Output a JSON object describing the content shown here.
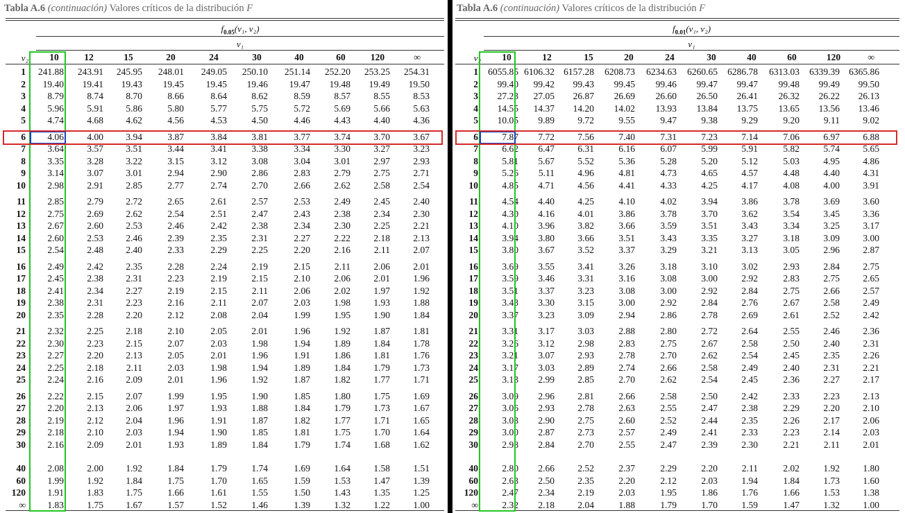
{
  "caption": {
    "table_number": "Tabla A.6",
    "continuation": "(continuación)",
    "title": "Valores críticos de la distribución",
    "letter": "F"
  },
  "row_axis_label": "v₂",
  "column_axis_label": "v₁",
  "columns": [
    "10",
    "12",
    "15",
    "20",
    "24",
    "30",
    "40",
    "60",
    "120",
    "∞"
  ],
  "rows": [
    "1",
    "2",
    "3",
    "4",
    "5",
    "6",
    "7",
    "8",
    "9",
    "10",
    "11",
    "12",
    "13",
    "14",
    "15",
    "16",
    "17",
    "18",
    "19",
    "20",
    "21",
    "22",
    "23",
    "24",
    "25",
    "26",
    "27",
    "28",
    "29",
    "30",
    "40",
    "60",
    "120",
    "∞"
  ],
  "tables": [
    {
      "header_f": "f",
      "header_sub": "0.05",
      "header_args": "(v₁, v₂)",
      "values": [
        [
          "241.88",
          "243.91",
          "245.95",
          "248.01",
          "249.05",
          "250.10",
          "251.14",
          "252.20",
          "253.25",
          "254.31"
        ],
        [
          "19.40",
          "19.41",
          "19.43",
          "19.45",
          "19.45",
          "19.46",
          "19.47",
          "19.48",
          "19.49",
          "19.50"
        ],
        [
          "8.79",
          "8.74",
          "8.70",
          "8.66",
          "8.64",
          "8.62",
          "8.59",
          "8.57",
          "8.55",
          "8.53"
        ],
        [
          "5.96",
          "5.91",
          "5.86",
          "5.80",
          "5.77",
          "5.75",
          "5.72",
          "5.69",
          "5.66",
          "5.63"
        ],
        [
          "4.74",
          "4.68",
          "4.62",
          "4.56",
          "4.53",
          "4.50",
          "4.46",
          "4.43",
          "4.40",
          "4.36"
        ],
        [
          "4.06",
          "4.00",
          "3.94",
          "3.87",
          "3.84",
          "3.81",
          "3.77",
          "3.74",
          "3.70",
          "3.67"
        ],
        [
          "3.64",
          "3.57",
          "3.51",
          "3.44",
          "3.41",
          "3.38",
          "3.34",
          "3.30",
          "3.27",
          "3.23"
        ],
        [
          "3.35",
          "3.28",
          "3.22",
          "3.15",
          "3.12",
          "3.08",
          "3.04",
          "3.01",
          "2.97",
          "2.93"
        ],
        [
          "3.14",
          "3.07",
          "3.01",
          "2.94",
          "2.90",
          "2.86",
          "2.83",
          "2.79",
          "2.75",
          "2.71"
        ],
        [
          "2.98",
          "2.91",
          "2.85",
          "2.77",
          "2.74",
          "2.70",
          "2.66",
          "2.62",
          "2.58",
          "2.54"
        ],
        [
          "2.85",
          "2.79",
          "2.72",
          "2.65",
          "2.61",
          "2.57",
          "2.53",
          "2.49",
          "2.45",
          "2.40"
        ],
        [
          "2.75",
          "2.69",
          "2.62",
          "2.54",
          "2.51",
          "2.47",
          "2.43",
          "2.38",
          "2.34",
          "2.30"
        ],
        [
          "2.67",
          "2.60",
          "2.53",
          "2.46",
          "2.42",
          "2.38",
          "2.34",
          "2.30",
          "2.25",
          "2.21"
        ],
        [
          "2.60",
          "2.53",
          "2.46",
          "2.39",
          "2.35",
          "2.31",
          "2.27",
          "2.22",
          "2.18",
          "2.13"
        ],
        [
          "2.54",
          "2.48",
          "2.40",
          "2.33",
          "2.29",
          "2.25",
          "2.20",
          "2.16",
          "2.11",
          "2.07"
        ],
        [
          "2.49",
          "2.42",
          "2.35",
          "2.28",
          "2.24",
          "2.19",
          "2.15",
          "2.11",
          "2.06",
          "2.01"
        ],
        [
          "2.45",
          "2.38",
          "2.31",
          "2.23",
          "2.19",
          "2.15",
          "2.10",
          "2.06",
          "2.01",
          "1.96"
        ],
        [
          "2.41",
          "2.34",
          "2.27",
          "2.19",
          "2.15",
          "2.11",
          "2.06",
          "2.02",
          "1.97",
          "1.92"
        ],
        [
          "2.38",
          "2.31",
          "2.23",
          "2.16",
          "2.11",
          "2.07",
          "2.03",
          "1.98",
          "1.93",
          "1.88"
        ],
        [
          "2.35",
          "2.28",
          "2.20",
          "2.12",
          "2.08",
          "2.04",
          "1.99",
          "1.95",
          "1.90",
          "1.84"
        ],
        [
          "2.32",
          "2.25",
          "2.18",
          "2.10",
          "2.05",
          "2.01",
          "1.96",
          "1.92",
          "1.87",
          "1.81"
        ],
        [
          "2.30",
          "2.23",
          "2.15",
          "2.07",
          "2.03",
          "1.98",
          "1.94",
          "1.89",
          "1.84",
          "1.78"
        ],
        [
          "2.27",
          "2.20",
          "2.13",
          "2.05",
          "2.01",
          "1.96",
          "1.91",
          "1.86",
          "1.81",
          "1.76"
        ],
        [
          "2.25",
          "2.18",
          "2.11",
          "2.03",
          "1.98",
          "1.94",
          "1.89",
          "1.84",
          "1.79",
          "1.73"
        ],
        [
          "2.24",
          "2.16",
          "2.09",
          "2.01",
          "1.96",
          "1.92",
          "1.87",
          "1.82",
          "1.77",
          "1.71"
        ],
        [
          "2.22",
          "2.15",
          "2.07",
          "1.99",
          "1.95",
          "1.90",
          "1.85",
          "1.80",
          "1.75",
          "1.69"
        ],
        [
          "2.20",
          "2.13",
          "2.06",
          "1.97",
          "1.93",
          "1.88",
          "1.84",
          "1.79",
          "1.73",
          "1.67"
        ],
        [
          "2.19",
          "2.12",
          "2.04",
          "1.96",
          "1.91",
          "1.87",
          "1.82",
          "1.77",
          "1.71",
          "1.65"
        ],
        [
          "2.18",
          "2.10",
          "2.03",
          "1.94",
          "1.90",
          "1.85",
          "1.81",
          "1.75",
          "1.70",
          "1.64"
        ],
        [
          "2.16",
          "2.09",
          "2.01",
          "1.93",
          "1.89",
          "1.84",
          "1.79",
          "1.74",
          "1.68",
          "1.62"
        ],
        [
          "2.08",
          "2.00",
          "1.92",
          "1.84",
          "1.79",
          "1.74",
          "1.69",
          "1.64",
          "1.58",
          "1.51"
        ],
        [
          "1.99",
          "1.92",
          "1.84",
          "1.75",
          "1.70",
          "1.65",
          "1.59",
          "1.53",
          "1.47",
          "1.39"
        ],
        [
          "1.91",
          "1.83",
          "1.75",
          "1.66",
          "1.61",
          "1.55",
          "1.50",
          "1.43",
          "1.35",
          "1.25"
        ],
        [
          "1.83",
          "1.75",
          "1.67",
          "1.57",
          "1.52",
          "1.46",
          "1.39",
          "1.32",
          "1.22",
          "1.00"
        ]
      ]
    },
    {
      "header_f": "f",
      "header_sub": "0.01",
      "header_args": "(v₁, v₂)",
      "values": [
        [
          "6055.85",
          "6106.32",
          "6157.28",
          "6208.73",
          "6234.63",
          "6260.65",
          "6286.78",
          "6313.03",
          "6339.39",
          "6365.86"
        ],
        [
          "99.40",
          "99.42",
          "99.43",
          "99.45",
          "99.46",
          "99.47",
          "99.47",
          "99.48",
          "99.49",
          "99.50"
        ],
        [
          "27.23",
          "27.05",
          "26.87",
          "26.69",
          "26.60",
          "26.50",
          "26.41",
          "26.32",
          "26.22",
          "26.13"
        ],
        [
          "14.55",
          "14.37",
          "14.20",
          "14.02",
          "13.93",
          "13.84",
          "13.75",
          "13.65",
          "13.56",
          "13.46"
        ],
        [
          "10.05",
          "9.89",
          "9.72",
          "9.55",
          "9.47",
          "9.38",
          "9.29",
          "9.20",
          "9.11",
          "9.02"
        ],
        [
          "7.87",
          "7.72",
          "7.56",
          "7.40",
          "7.31",
          "7.23",
          "7.14",
          "7.06",
          "6.97",
          "6.88"
        ],
        [
          "6.62",
          "6.47",
          "6.31",
          "6.16",
          "6.07",
          "5.99",
          "5.91",
          "5.82",
          "5.74",
          "5.65"
        ],
        [
          "5.81",
          "5.67",
          "5.52",
          "5.36",
          "5.28",
          "5.20",
          "5.12",
          "5.03",
          "4.95",
          "4.86"
        ],
        [
          "5.26",
          "5.11",
          "4.96",
          "4.81",
          "4.73",
          "4.65",
          "4.57",
          "4.48",
          "4.40",
          "4.31"
        ],
        [
          "4.85",
          "4.71",
          "4.56",
          "4.41",
          "4.33",
          "4.25",
          "4.17",
          "4.08",
          "4.00",
          "3.91"
        ],
        [
          "4.54",
          "4.40",
          "4.25",
          "4.10",
          "4.02",
          "3.94",
          "3.86",
          "3.78",
          "3.69",
          "3.60"
        ],
        [
          "4.30",
          "4.16",
          "4.01",
          "3.86",
          "3.78",
          "3.70",
          "3.62",
          "3.54",
          "3.45",
          "3.36"
        ],
        [
          "4.10",
          "3.96",
          "3.82",
          "3.66",
          "3.59",
          "3.51",
          "3.43",
          "3.34",
          "3.25",
          "3.17"
        ],
        [
          "3.94",
          "3.80",
          "3.66",
          "3.51",
          "3.43",
          "3.35",
          "3.27",
          "3.18",
          "3.09",
          "3.00"
        ],
        [
          "3.80",
          "3.67",
          "3.52",
          "3.37",
          "3.29",
          "3.21",
          "3.13",
          "3.05",
          "2.96",
          "2.87"
        ],
        [
          "3.69",
          "3.55",
          "3.41",
          "3.26",
          "3.18",
          "3.10",
          "3.02",
          "2.93",
          "2.84",
          "2.75"
        ],
        [
          "3.59",
          "3.46",
          "3.31",
          "3.16",
          "3.08",
          "3.00",
          "2.92",
          "2.83",
          "2.75",
          "2.65"
        ],
        [
          "3.51",
          "3.37",
          "3.23",
          "3.08",
          "3.00",
          "2.92",
          "2.84",
          "2.75",
          "2.66",
          "2.57"
        ],
        [
          "3.43",
          "3.30",
          "3.15",
          "3.00",
          "2.92",
          "2.84",
          "2.76",
          "2.67",
          "2.58",
          "2.49"
        ],
        [
          "3.37",
          "3.23",
          "3.09",
          "2.94",
          "2.86",
          "2.78",
          "2.69",
          "2.61",
          "2.52",
          "2.42"
        ],
        [
          "3.31",
          "3.17",
          "3.03",
          "2.88",
          "2.80",
          "2.72",
          "2.64",
          "2.55",
          "2.46",
          "2.36"
        ],
        [
          "3.26",
          "3.12",
          "2.98",
          "2.83",
          "2.75",
          "2.67",
          "2.58",
          "2.50",
          "2.40",
          "2.31"
        ],
        [
          "3.21",
          "3.07",
          "2.93",
          "2.78",
          "2.70",
          "2.62",
          "2.54",
          "2.45",
          "2.35",
          "2.26"
        ],
        [
          "3.17",
          "3.03",
          "2.89",
          "2.74",
          "2.66",
          "2.58",
          "2.49",
          "2.40",
          "2.31",
          "2.21"
        ],
        [
          "3.13",
          "2.99",
          "2.85",
          "2.70",
          "2.62",
          "2.54",
          "2.45",
          "2.36",
          "2.27",
          "2.17"
        ],
        [
          "3.09",
          "2.96",
          "2.81",
          "2.66",
          "2.58",
          "2.50",
          "2.42",
          "2.33",
          "2.23",
          "2.13"
        ],
        [
          "3.06",
          "2.93",
          "2.78",
          "2.63",
          "2.55",
          "2.47",
          "2.38",
          "2.29",
          "2.20",
          "2.10"
        ],
        [
          "3.03",
          "2.90",
          "2.75",
          "2.60",
          "2.52",
          "2.44",
          "2.35",
          "2.26",
          "2.17",
          "2.06"
        ],
        [
          "3.00",
          "2.87",
          "2.73",
          "2.57",
          "2.49",
          "2.41",
          "2.33",
          "2.23",
          "2.14",
          "2.03"
        ],
        [
          "2.98",
          "2.84",
          "2.70",
          "2.55",
          "2.47",
          "2.39",
          "2.30",
          "2.21",
          "2.11",
          "2.01"
        ],
        [
          "2.80",
          "2.66",
          "2.52",
          "2.37",
          "2.29",
          "2.20",
          "2.11",
          "2.02",
          "1.92",
          "1.80"
        ],
        [
          "2.63",
          "2.50",
          "2.35",
          "2.20",
          "2.12",
          "2.03",
          "1.94",
          "1.84",
          "1.73",
          "1.60"
        ],
        [
          "2.47",
          "2.34",
          "2.19",
          "2.03",
          "1.95",
          "1.86",
          "1.76",
          "1.66",
          "1.53",
          "1.38"
        ],
        [
          "2.32",
          "2.18",
          "2.04",
          "1.88",
          "1.79",
          "1.70",
          "1.59",
          "1.47",
          "1.32",
          "1.00"
        ]
      ]
    }
  ],
  "highlight": {
    "column_box_color": "#22c522",
    "cell_box_color": "#1a3fc0",
    "row_box_color": "#d42a2a",
    "highlighted_row": "6",
    "highlighted_column": "10"
  }
}
